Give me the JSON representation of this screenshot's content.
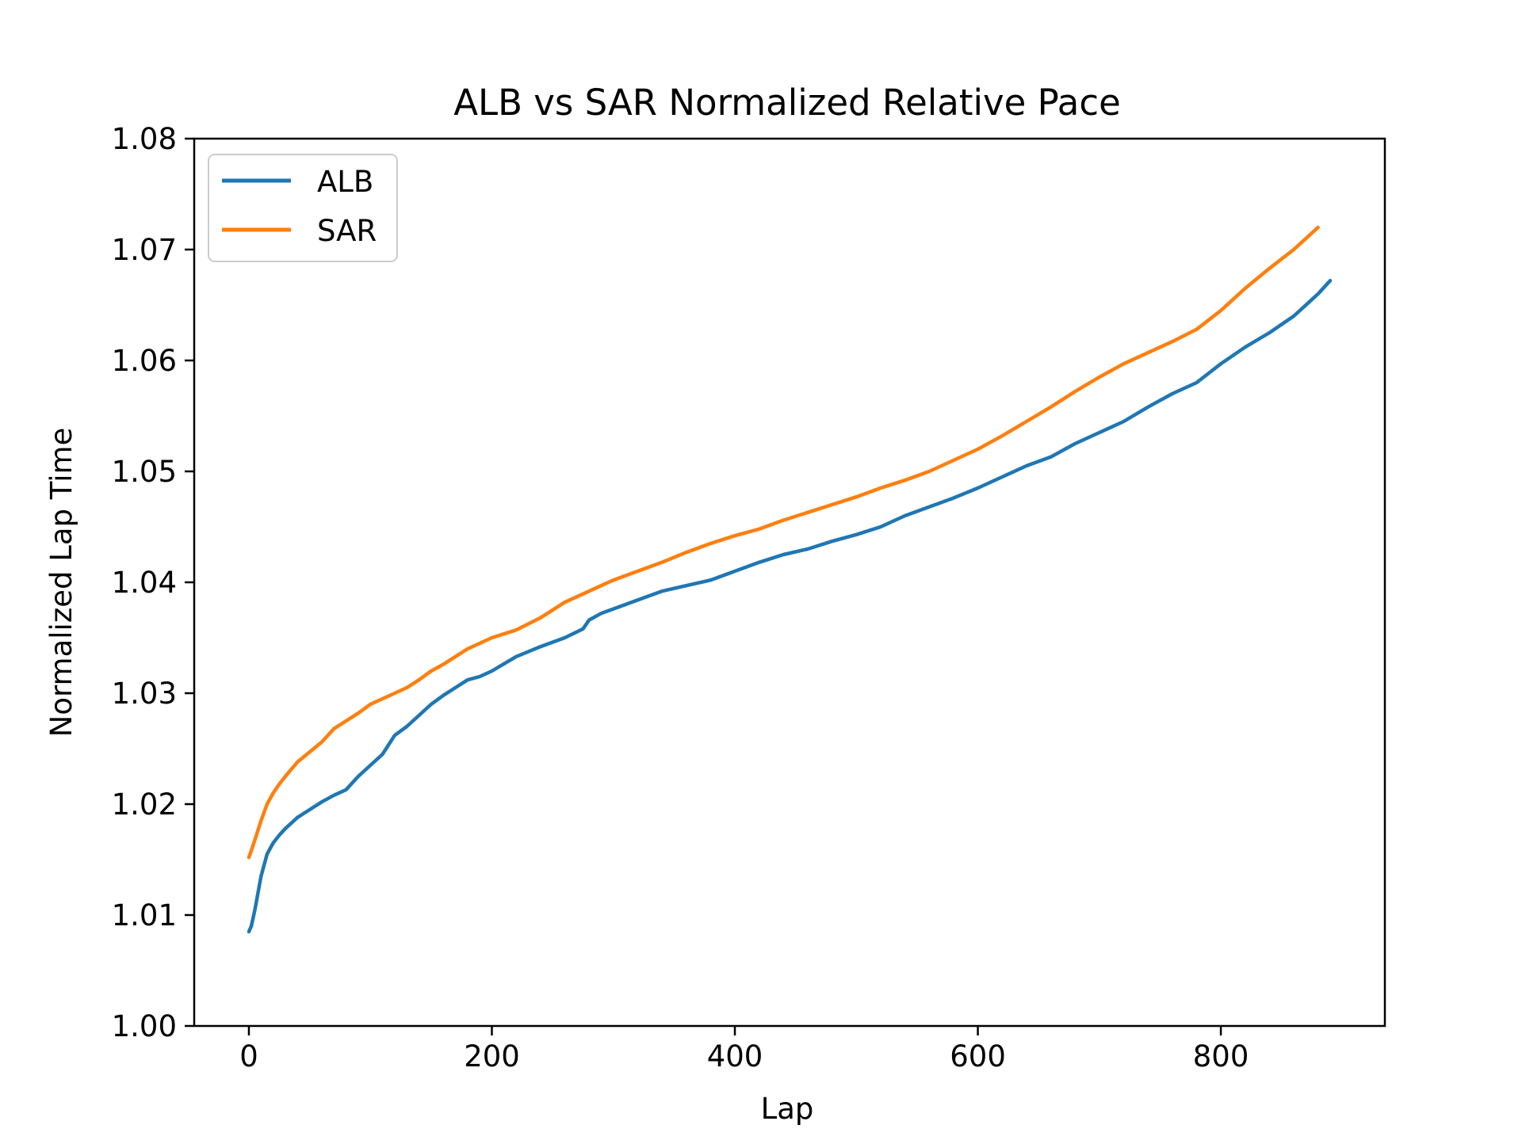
{
  "chart_data": {
    "type": "line",
    "title": "ALB vs SAR Normalized Relative Pace",
    "xlabel": "Lap",
    "ylabel": "Normalized Lap Time",
    "xlim": [
      -45,
      935
    ],
    "ylim": [
      1.0,
      1.08
    ],
    "x_ticks": [
      0,
      200,
      400,
      600,
      800
    ],
    "x_tick_labels": [
      "0",
      "200",
      "400",
      "600",
      "800"
    ],
    "y_ticks": [
      1.0,
      1.01,
      1.02,
      1.03,
      1.04,
      1.05,
      1.06,
      1.07,
      1.08
    ],
    "y_tick_labels": [
      "1.00",
      "1.01",
      "1.02",
      "1.03",
      "1.04",
      "1.05",
      "1.06",
      "1.07",
      "1.08"
    ],
    "grid": false,
    "legend": "upper-left",
    "series": [
      {
        "name": "ALB",
        "color": "#1f77b4",
        "x": [
          0,
          2,
          5,
          10,
          15,
          20,
          25,
          30,
          40,
          50,
          60,
          70,
          80,
          90,
          100,
          110,
          120,
          130,
          140,
          150,
          160,
          170,
          180,
          190,
          200,
          220,
          240,
          260,
          275,
          280,
          290,
          300,
          320,
          340,
          360,
          380,
          400,
          420,
          440,
          460,
          480,
          500,
          520,
          540,
          560,
          580,
          600,
          620,
          640,
          660,
          680,
          700,
          720,
          740,
          760,
          780,
          800,
          820,
          840,
          860,
          880,
          890
        ],
        "y": [
          1.0085,
          1.009,
          1.0105,
          1.0135,
          1.0155,
          1.0165,
          1.0172,
          1.0178,
          1.0188,
          1.0195,
          1.0202,
          1.0208,
          1.0213,
          1.0225,
          1.0235,
          1.0245,
          1.0262,
          1.027,
          1.028,
          1.029,
          1.0298,
          1.0305,
          1.0312,
          1.0315,
          1.032,
          1.0333,
          1.0342,
          1.035,
          1.0358,
          1.0366,
          1.0372,
          1.0376,
          1.0384,
          1.0392,
          1.0397,
          1.0402,
          1.041,
          1.0418,
          1.0425,
          1.043,
          1.0437,
          1.0443,
          1.045,
          1.046,
          1.0468,
          1.0476,
          1.0485,
          1.0495,
          1.0505,
          1.0513,
          1.0525,
          1.0535,
          1.0545,
          1.0558,
          1.057,
          1.058,
          1.0597,
          1.0612,
          1.0625,
          1.064,
          1.066,
          1.0672
        ]
      },
      {
        "name": "SAR",
        "color": "#ff7f0e",
        "x": [
          0,
          2,
          5,
          10,
          15,
          20,
          25,
          30,
          40,
          50,
          60,
          70,
          80,
          90,
          100,
          110,
          120,
          130,
          140,
          150,
          160,
          170,
          180,
          190,
          200,
          220,
          240,
          260,
          280,
          300,
          320,
          340,
          360,
          380,
          400,
          420,
          440,
          460,
          480,
          500,
          520,
          540,
          560,
          580,
          600,
          620,
          640,
          660,
          680,
          700,
          720,
          740,
          760,
          780,
          800,
          820,
          840,
          860,
          880
        ],
        "y": [
          1.0152,
          1.0158,
          1.0168,
          1.0185,
          1.02,
          1.021,
          1.0218,
          1.0225,
          1.0238,
          1.0247,
          1.0256,
          1.0268,
          1.0275,
          1.0282,
          1.029,
          1.0295,
          1.03,
          1.0305,
          1.0312,
          1.032,
          1.0326,
          1.0333,
          1.034,
          1.0345,
          1.035,
          1.0357,
          1.0368,
          1.0382,
          1.0392,
          1.0402,
          1.041,
          1.0418,
          1.0427,
          1.0435,
          1.0442,
          1.0448,
          1.0456,
          1.0463,
          1.047,
          1.0477,
          1.0485,
          1.0492,
          1.05,
          1.051,
          1.052,
          1.0532,
          1.0545,
          1.0558,
          1.0572,
          1.0585,
          1.0597,
          1.0607,
          1.0617,
          1.0628,
          1.0645,
          1.0665,
          1.0683,
          1.07,
          1.072
        ]
      }
    ]
  }
}
